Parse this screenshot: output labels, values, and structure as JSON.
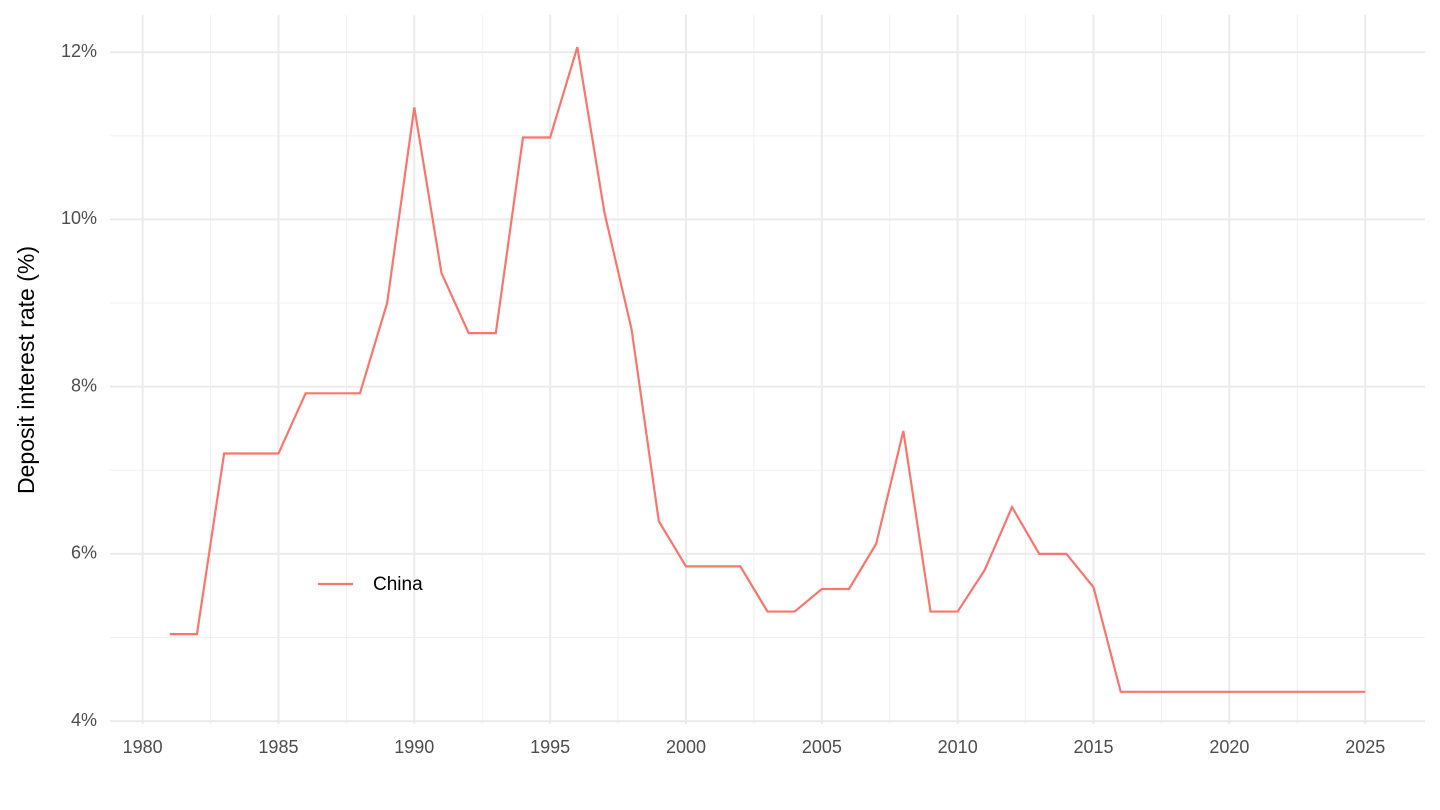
{
  "chart_data": {
    "type": "line",
    "y_label": "Deposit interest rate (%)",
    "x": [
      1981,
      1982,
      1983,
      1984,
      1985,
      1986,
      1987,
      1988,
      1989,
      1990,
      1991,
      1992,
      1993,
      1994,
      1995,
      1996,
      1997,
      1998,
      1999,
      2000,
      2001,
      2002,
      2003,
      2004,
      2005,
      2006,
      2007,
      2008,
      2009,
      2010,
      2011,
      2012,
      2013,
      2014,
      2015,
      2016,
      2017,
      2018,
      2019,
      2020,
      2021,
      2022,
      2023,
      2024,
      2025
    ],
    "series": [
      {
        "name": "China",
        "color": "#f8766d",
        "values": [
          5.04,
          5.04,
          7.2,
          7.2,
          7.2,
          7.92,
          7.92,
          7.92,
          9.0,
          11.34,
          9.36,
          8.64,
          8.64,
          10.98,
          10.98,
          12.06,
          10.08,
          8.68,
          6.39,
          5.85,
          5.85,
          5.85,
          5.31,
          5.31,
          5.58,
          5.58,
          6.12,
          7.47,
          5.31,
          5.31,
          5.81,
          6.56,
          6.0,
          6.0,
          5.6,
          4.35,
          4.35,
          4.35,
          4.35,
          4.35,
          4.35,
          4.35,
          4.35,
          4.35,
          4.35
        ]
      }
    ],
    "xlim": [
      1978.8,
      2027.2
    ],
    "xticks": [
      1980,
      1985,
      1990,
      1995,
      2000,
      2005,
      2010,
      2015,
      2020,
      2025
    ],
    "ylim": [
      3.965,
      12.445
    ],
    "yticks": [
      {
        "value": 4,
        "label": "4%"
      },
      {
        "value": 6,
        "label": "6%"
      },
      {
        "value": 8,
        "label": "8%"
      },
      {
        "value": 10,
        "label": "10%"
      },
      {
        "value": 12,
        "label": "12%"
      }
    ],
    "grid": true,
    "legend_position": "bottom-left"
  }
}
